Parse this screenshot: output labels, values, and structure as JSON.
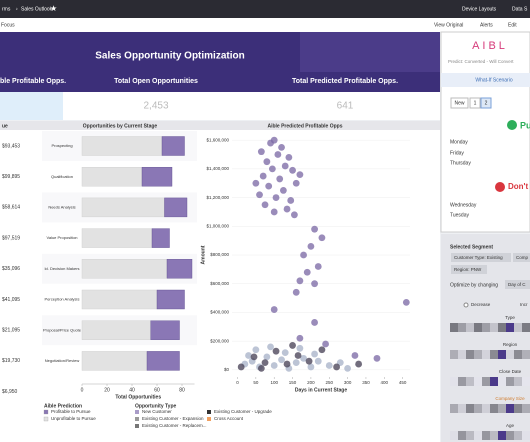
{
  "top_bar": {
    "breadcrumb": "rms",
    "page": "Sales Outlook",
    "device_layouts": "Device Layouts",
    "data": "Data S"
  },
  "toolbar": {
    "focus": "Focus",
    "view_original": "View Original",
    "alerts": "Alerts",
    "edit": "Edit"
  },
  "header": {
    "title": "Sales Opportunity Optimization"
  },
  "kpis": [
    {
      "label": "ble Profitable Opps."
    },
    {
      "label": "Total Open Opportunities",
      "value": "2,453"
    },
    {
      "label": "Total Predicted Profitable Opps.",
      "value": "641"
    }
  ],
  "value_table": {
    "header": "ue",
    "rows": [
      "$93,453",
      "$99,895",
      "$58,614",
      "$97,519",
      "$35,096",
      "$41,095",
      "$21,095",
      "$19,730",
      "$6,950"
    ]
  },
  "chart_data": [
    {
      "type": "bar",
      "orientation": "horizontal",
      "stacked": true,
      "title": "Opportunities by Current Stage",
      "legend_title": "Aible Prediction",
      "categories": [
        "Prospecting",
        "Qualification",
        "Needs Analysis",
        "Value Proposition",
        "Id. Decision Makers",
        "Perception Analysis",
        "Proposal/Price Quote",
        "Negotiation/Review"
      ],
      "series": [
        {
          "name": "Unprofitable to Pursue",
          "color": "#e2e2e2",
          "values": [
            64,
            48,
            66,
            56,
            68,
            60,
            55,
            52
          ]
        },
        {
          "name": "Profitable to Pursue",
          "color": "#8a77b5",
          "values": [
            18,
            24,
            18,
            14,
            20,
            22,
            23,
            26
          ]
        }
      ],
      "xlabel": "Total Opportunities",
      "xlim": [
        0,
        90
      ],
      "xticks": [
        0,
        20,
        40,
        60,
        80
      ]
    },
    {
      "type": "scatter",
      "title": "Aible Predicted Profitable Opps",
      "xlabel": "Days in Current Stage",
      "ylabel": "Amount",
      "xlim": [
        -15,
        470
      ],
      "ylim": [
        -50000,
        1650000
      ],
      "xticks": [
        0,
        50,
        100,
        150,
        200,
        250,
        300,
        350,
        400,
        450
      ],
      "yticks": [
        {
          "value": 0,
          "label": "$0"
        },
        {
          "value": 200000,
          "label": "$200,000"
        },
        {
          "value": 400000,
          "label": "$400,000"
        },
        {
          "value": 600000,
          "label": "$600,000"
        },
        {
          "value": 800000,
          "label": "$800,000"
        },
        {
          "value": 1000000,
          "label": "$1,000,000"
        },
        {
          "value": 1200000,
          "label": "$1,200,000"
        },
        {
          "value": 1400000,
          "label": "$1,400,000"
        },
        {
          "value": 1600000,
          "label": "$1,600,000"
        }
      ],
      "series": [
        {
          "color": "#7d6ba6",
          "x": [
            90,
            100,
            120,
            65,
            110,
            140,
            80,
            130,
            95,
            150,
            70,
            115,
            160,
            85,
            125,
            60,
            105,
            145,
            75,
            135,
            100,
            155,
            170,
            50,
            210,
            230,
            200,
            180,
            220,
            190,
            170,
            210,
            160,
            100,
            210,
            170,
            460,
            240,
            380,
            320
          ],
          "values": [
            1580000,
            1600000,
            1550000,
            1520000,
            1500000,
            1480000,
            1450000,
            1420000,
            1400000,
            1390000,
            1350000,
            1330000,
            1300000,
            1280000,
            1250000,
            1220000,
            1200000,
            1180000,
            1150000,
            1120000,
            1100000,
            1080000,
            1360000,
            1300000,
            980000,
            920000,
            860000,
            800000,
            720000,
            680000,
            620000,
            600000,
            540000,
            420000,
            330000,
            220000,
            470000,
            180000,
            80000,
            100000
          ]
        },
        {
          "color": "#a9b3c9",
          "x": [
            20,
            40,
            60,
            80,
            100,
            120,
            140,
            160,
            180,
            200,
            220,
            250,
            280,
            300,
            50,
            90,
            130,
            170,
            210,
            30
          ],
          "values": [
            40000,
            60000,
            20000,
            90000,
            30000,
            70000,
            10000,
            50000,
            80000,
            20000,
            60000,
            30000,
            50000,
            10000,
            140000,
            160000,
            120000,
            150000,
            110000,
            100000
          ]
        },
        {
          "color": "#4a4458",
          "x": [
            10,
            45,
            75,
            105,
            135,
            165,
            195,
            230,
            270,
            330,
            65,
            150
          ],
          "values": [
            20000,
            90000,
            50000,
            130000,
            40000,
            100000,
            60000,
            140000,
            20000,
            40000,
            10000,
            170000
          ]
        }
      ]
    }
  ],
  "legends": {
    "opportunity_type": {
      "title": "Opportunity Type",
      "items": [
        {
          "name": "New Customer",
          "color": "#a99cc8"
        },
        {
          "name": "Existing Customer - Expansion",
          "color": "#9a9a9a"
        },
        {
          "name": "Existing Customer - Replacem...",
          "color": "#777"
        },
        {
          "name": "Existing Customer - Upgrade",
          "color": "#333"
        },
        {
          "name": "Cross Account",
          "color": "#f0a060"
        }
      ]
    }
  },
  "side_panel": {
    "logo": "AIBL",
    "predict": "Predict: Converted - Will Convert",
    "tab": "What-If Scenario",
    "buttons": [
      "New",
      "1",
      "2"
    ],
    "pursue": "Pu",
    "pursue_days": [
      "Monday",
      "Friday",
      "Thursday"
    ],
    "dont": "Don't",
    "dont_days": [
      "Wednesday",
      "Tuesday"
    ]
  },
  "segment_panel": {
    "title": "Selected Segment",
    "chips": [
      "Customer Type: Existing",
      "Comp",
      "Region: PNW"
    ],
    "optimize_label": "Optimize by changing",
    "optimize_chip": "Day of C",
    "decrease": "Decrease",
    "increase": "Incr",
    "factors": [
      "Type",
      "Region",
      "Close Date",
      "Company Size",
      "Age"
    ]
  }
}
